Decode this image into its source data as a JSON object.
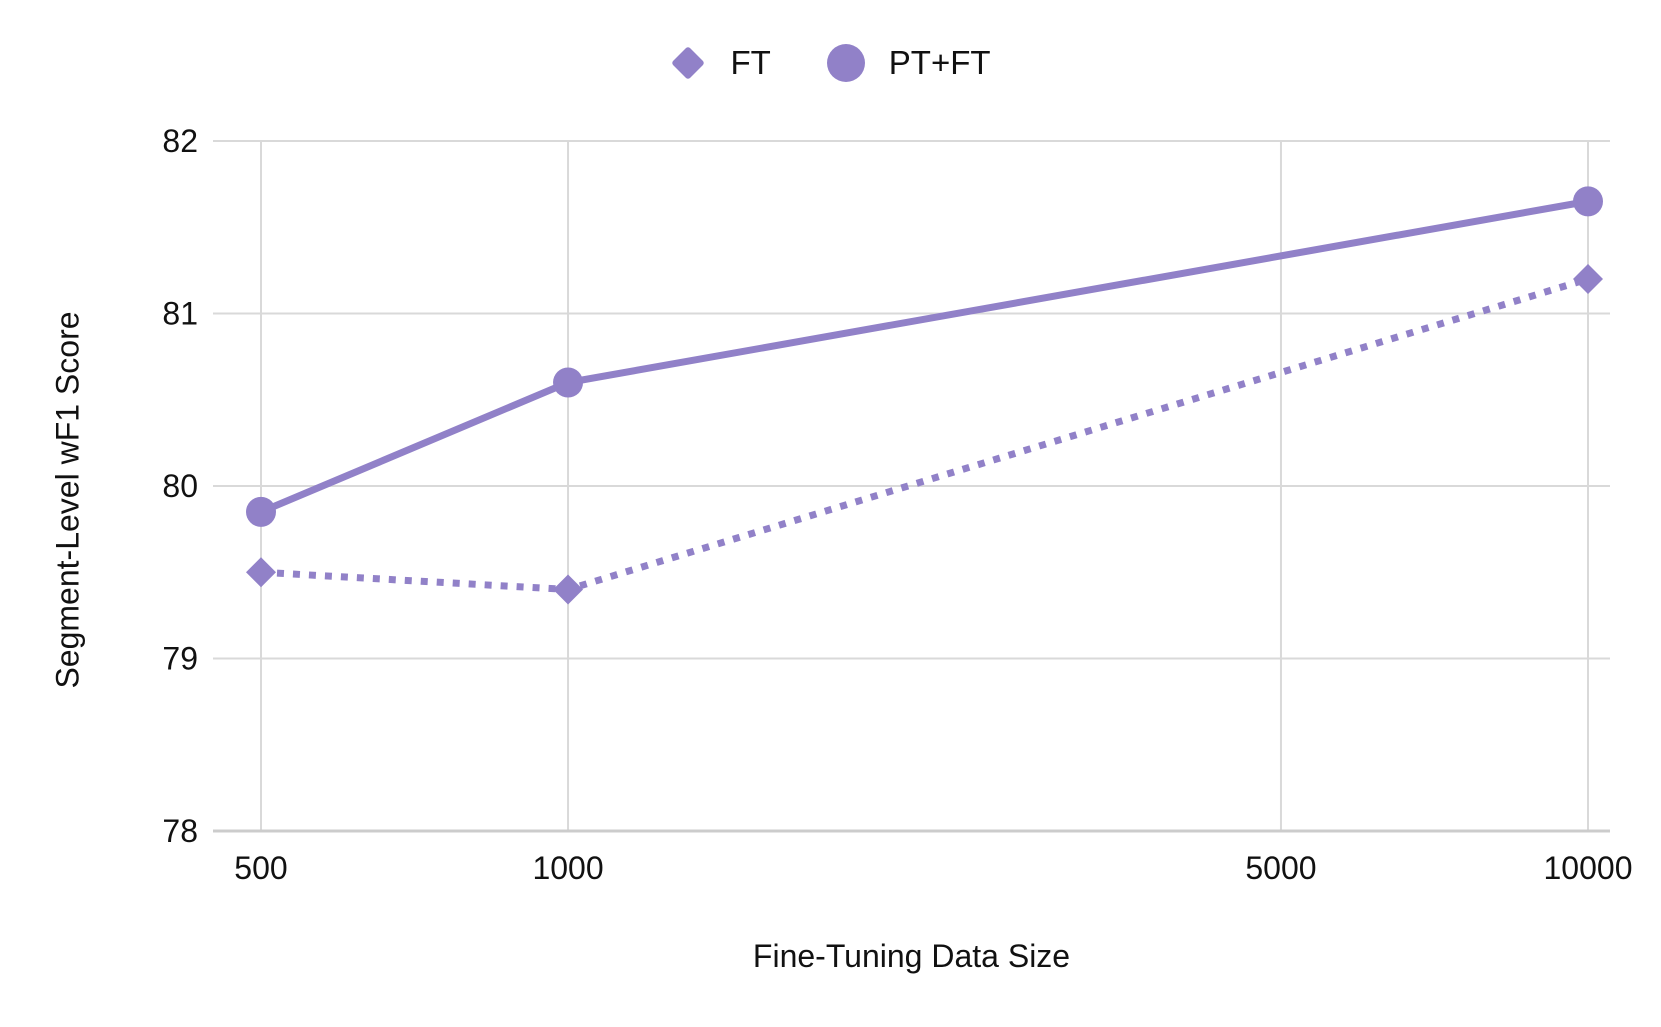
{
  "chart_data": {
    "type": "line",
    "title": "",
    "xlabel": "Fine-Tuning Data Size",
    "ylabel": "Segment-Level wF1 Score",
    "x_scale": "log",
    "x": [
      500,
      1000,
      10000
    ],
    "series": [
      {
        "name": "FT",
        "marker": "diamond",
        "line_style": "dotted",
        "values": [
          79.5,
          79.4,
          81.2
        ]
      },
      {
        "name": "PT+FT",
        "marker": "circle",
        "line_style": "solid",
        "values": [
          79.85,
          80.6,
          81.65
        ]
      }
    ],
    "xticks": [
      500,
      1000,
      5000,
      10000
    ],
    "yticks": [
      82,
      81,
      80,
      79,
      78
    ],
    "ylim": [
      78,
      82
    ],
    "xlim": [
      500,
      10000
    ],
    "grid": true,
    "legend_position": "top-center",
    "colors": {
      "series": "#9181C8",
      "gridline": "#D9D9D9",
      "axis_line": "#CCCCCC",
      "text": "#111111"
    }
  }
}
